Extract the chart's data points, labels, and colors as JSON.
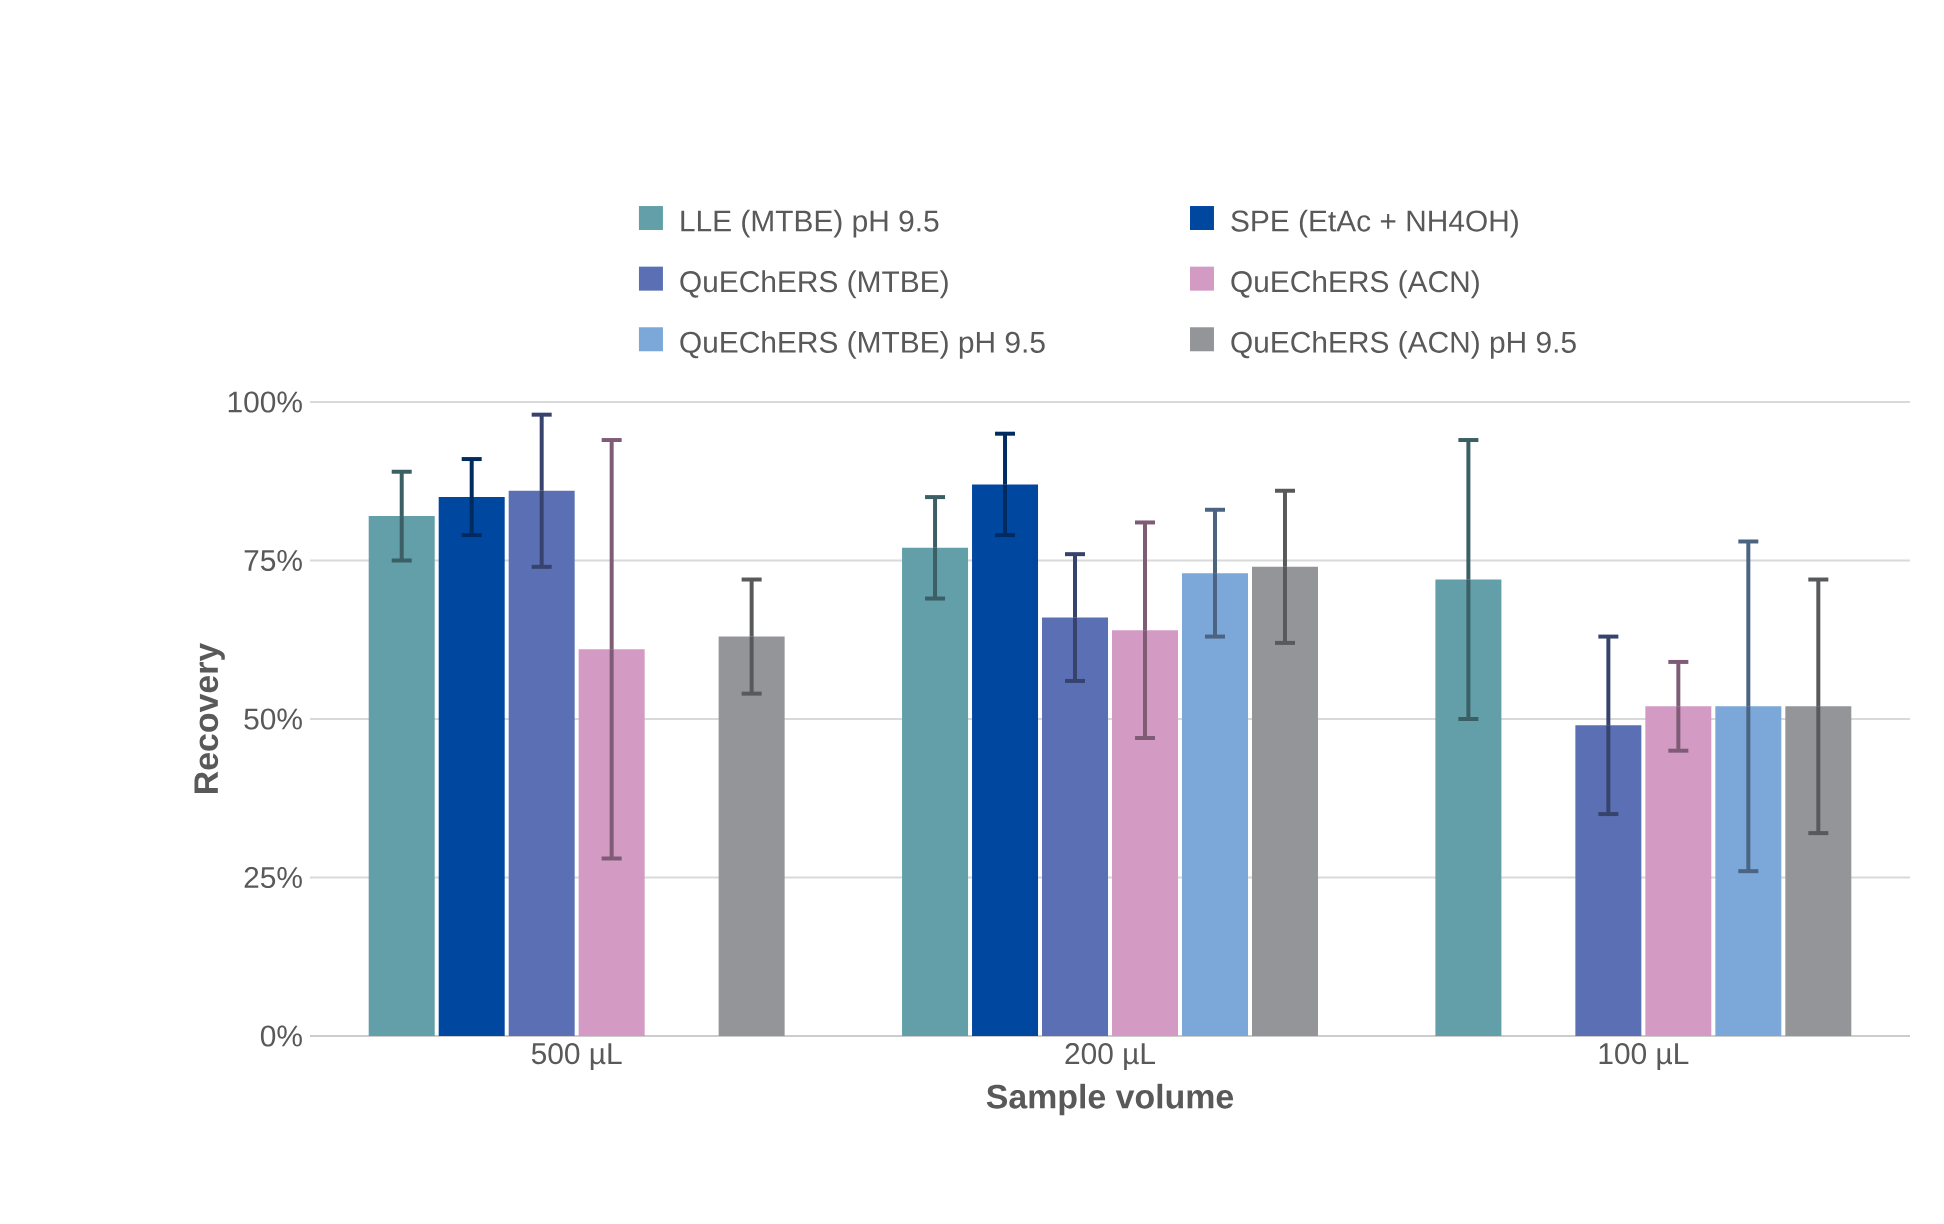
{
  "chart_data": {
    "type": "bar",
    "xlabel": "Sample volume",
    "ylabel": "Recovery",
    "categories": [
      "500 µL",
      "200 µL",
      "100 µL"
    ],
    "ylim": [
      0,
      100
    ],
    "yticks": [
      {
        "value": 0,
        "label": "0%"
      },
      {
        "value": 25,
        "label": "25%"
      },
      {
        "value": 50,
        "label": "50%"
      },
      {
        "value": 75,
        "label": "75%"
      },
      {
        "value": 100,
        "label": "100%"
      }
    ],
    "grid": "y",
    "legend": "top",
    "series": [
      {
        "name": "LLE (MTBE) pH 9.5",
        "color": "#629fa8",
        "values": [
          82,
          77,
          72
        ],
        "errors": [
          [
            75,
            89
          ],
          [
            69,
            85
          ],
          [
            50,
            94
          ]
        ]
      },
      {
        "name": "SPE (EtAc + NH4OH)",
        "color": "#0047a0",
        "values": [
          85,
          87,
          null
        ],
        "errors": [
          [
            79,
            91
          ],
          [
            79,
            95
          ],
          null
        ]
      },
      {
        "name": "QuEChERS (MTBE)",
        "color": "#5b70b4",
        "values": [
          86,
          66,
          49
        ],
        "errors": [
          [
            74,
            98
          ],
          [
            56,
            76
          ],
          [
            35,
            63
          ]
        ]
      },
      {
        "name": "QuEChERS (ACN)",
        "color": "#d39ac4",
        "values": [
          61,
          64,
          52
        ],
        "errors": [
          [
            28,
            94
          ],
          [
            47,
            81
          ],
          [
            45,
            59
          ]
        ]
      },
      {
        "name": "QuEChERS (MTBE) pH 9.5",
        "color": "#7ba7d9",
        "values": [
          null,
          73,
          52
        ],
        "errors": [
          null,
          [
            63,
            83
          ],
          [
            26,
            78
          ]
        ]
      },
      {
        "name": "QuEChERS (ACN) pH 9.5",
        "color": "#939598",
        "values": [
          63,
          74,
          52
        ],
        "errors": [
          [
            54,
            72
          ],
          [
            62,
            86
          ],
          [
            32,
            72
          ]
        ]
      }
    ]
  }
}
